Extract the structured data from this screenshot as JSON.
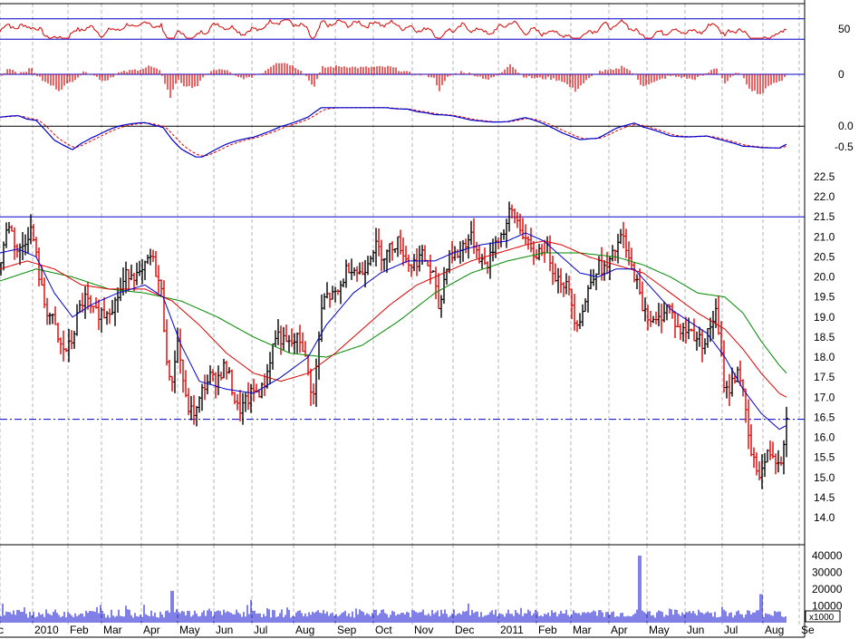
{
  "chart_data": {
    "type": "line",
    "panels": {
      "rsi": {
        "tick_labels": [
          "50"
        ],
        "ylim": [
          0,
          100
        ],
        "reference_lines": [
          30,
          70
        ],
        "color": "#dd0000"
      },
      "histogram": {
        "tick_labels": [
          "0"
        ],
        "color": "#dd0000"
      },
      "macd": {
        "tick_labels": [
          "0.0",
          "-0.5"
        ],
        "ylim": [
          -0.9,
          0.6
        ],
        "series_colors": {
          "macd": "#0000cc",
          "signal": "#dd0000"
        }
      },
      "price": {
        "tick_labels": [
          "22.5",
          "22.0",
          "21.5",
          "21.0",
          "20.5",
          "20.0",
          "19.5",
          "19.0",
          "18.5",
          "18.0",
          "17.5",
          "17.0",
          "16.5",
          "16.0",
          "15.5",
          "15.0",
          "14.5",
          "14.0"
        ],
        "ylim": [
          13.6,
          22.9
        ],
        "reference_lines": [
          {
            "value": 21.5,
            "style": "solid"
          },
          {
            "value": 16.45,
            "style": "dashdot"
          }
        ],
        "ma_colors": {
          "short": "#0000cc",
          "medium": "#dd0000",
          "long": "#008800"
        }
      },
      "volume": {
        "tick_labels": [
          "40000",
          "30000",
          "20000",
          "10000"
        ],
        "unit_label": "x1000",
        "ylim": [
          0,
          45000
        ],
        "color": "#0000cc"
      }
    },
    "x_axis_labels": [
      "c",
      "2010",
      "Feb",
      "Mar",
      "Apr",
      "May",
      "Jun",
      "Jul",
      "Aug",
      "Sep",
      "Oct",
      "Nov",
      "Dec",
      "2011",
      "Feb",
      "Mar",
      "Apr",
      "May",
      "Jun",
      "Jul",
      "Aug",
      "Se"
    ],
    "ohlc_anchors": [
      [
        0,
        20.3
      ],
      [
        10,
        21.2
      ],
      [
        20,
        20.8
      ],
      [
        35,
        21.0
      ],
      [
        50,
        19.4
      ],
      [
        65,
        18.2
      ],
      [
        80,
        18.5
      ],
      [
        95,
        19.5
      ],
      [
        115,
        18.9
      ],
      [
        130,
        19.7
      ],
      [
        145,
        20.0
      ],
      [
        165,
        20.4
      ],
      [
        178,
        19.7
      ],
      [
        188,
        17.2
      ],
      [
        196,
        18.2
      ],
      [
        205,
        17.0
      ],
      [
        218,
        16.6
      ],
      [
        232,
        17.6
      ],
      [
        248,
        17.6
      ],
      [
        262,
        16.9
      ],
      [
        275,
        16.8
      ],
      [
        290,
        17.4
      ],
      [
        305,
        18.4
      ],
      [
        318,
        18.5
      ],
      [
        333,
        18.2
      ],
      [
        346,
        17.2
      ],
      [
        356,
        19.2
      ],
      [
        370,
        19.7
      ],
      [
        385,
        20.1
      ],
      [
        400,
        20.3
      ],
      [
        415,
        20.6
      ],
      [
        430,
        20.8
      ],
      [
        445,
        20.6
      ],
      [
        460,
        20.4
      ],
      [
        478,
        20.2
      ],
      [
        485,
        19.2
      ],
      [
        495,
        20.4
      ],
      [
        510,
        20.9
      ],
      [
        525,
        20.7
      ],
      [
        540,
        20.4
      ],
      [
        553,
        21.0
      ],
      [
        563,
        21.8
      ],
      [
        575,
        21.0
      ],
      [
        590,
        20.7
      ],
      [
        605,
        20.5
      ],
      [
        620,
        20.0
      ],
      [
        635,
        18.9
      ],
      [
        648,
        19.6
      ],
      [
        663,
        20.3
      ],
      [
        678,
        20.5
      ],
      [
        688,
        20.9
      ],
      [
        700,
        20.2
      ],
      [
        708,
        19.1
      ],
      [
        722,
        19.0
      ],
      [
        738,
        19.1
      ],
      [
        752,
        18.8
      ],
      [
        765,
        18.4
      ],
      [
        778,
        18.6
      ],
      [
        790,
        18.9
      ],
      [
        800,
        17.3
      ],
      [
        815,
        17.6
      ],
      [
        828,
        15.8
      ],
      [
        840,
        15.0
      ],
      [
        852,
        15.7
      ],
      [
        862,
        15.6
      ],
      [
        868,
        16.3
      ]
    ],
    "ma_short_anchors": [
      [
        0,
        20.6
      ],
      [
        20,
        20.7
      ],
      [
        40,
        20.5
      ],
      [
        60,
        19.6
      ],
      [
        80,
        19.0
      ],
      [
        100,
        19.3
      ],
      [
        130,
        19.6
      ],
      [
        160,
        19.8
      ],
      [
        180,
        19.5
      ],
      [
        200,
        18.3
      ],
      [
        220,
        17.4
      ],
      [
        250,
        17.2
      ],
      [
        280,
        17.1
      ],
      [
        310,
        17.5
      ],
      [
        340,
        18.0
      ],
      [
        360,
        18.8
      ],
      [
        390,
        19.6
      ],
      [
        420,
        20.1
      ],
      [
        450,
        20.4
      ],
      [
        480,
        20.4
      ],
      [
        500,
        20.6
      ],
      [
        530,
        20.8
      ],
      [
        560,
        20.9
      ],
      [
        580,
        21.1
      ],
      [
        600,
        20.9
      ],
      [
        620,
        20.5
      ],
      [
        640,
        20.1
      ],
      [
        660,
        20.0
      ],
      [
        680,
        20.2
      ],
      [
        700,
        20.2
      ],
      [
        720,
        19.7
      ],
      [
        740,
        19.2
      ],
      [
        760,
        18.9
      ],
      [
        780,
        18.6
      ],
      [
        800,
        18.0
      ],
      [
        820,
        17.2
      ],
      [
        840,
        16.6
      ],
      [
        860,
        16.2
      ],
      [
        868,
        16.3
      ]
    ],
    "ma_medium_anchors": [
      [
        0,
        20.2
      ],
      [
        30,
        20.4
      ],
      [
        60,
        20.2
      ],
      [
        90,
        19.8
      ],
      [
        120,
        19.7
      ],
      [
        160,
        19.7
      ],
      [
        190,
        19.4
      ],
      [
        220,
        18.8
      ],
      [
        250,
        18.1
      ],
      [
        280,
        17.6
      ],
      [
        310,
        17.4
      ],
      [
        340,
        17.6
      ],
      [
        370,
        18.1
      ],
      [
        400,
        18.7
      ],
      [
        430,
        19.3
      ],
      [
        460,
        19.8
      ],
      [
        490,
        20.1
      ],
      [
        520,
        20.4
      ],
      [
        550,
        20.6
      ],
      [
        580,
        20.8
      ],
      [
        600,
        20.9
      ],
      [
        620,
        20.8
      ],
      [
        650,
        20.5
      ],
      [
        680,
        20.3
      ],
      [
        710,
        20.1
      ],
      [
        740,
        19.6
      ],
      [
        770,
        19.1
      ],
      [
        800,
        18.7
      ],
      [
        820,
        18.2
      ],
      [
        840,
        17.6
      ],
      [
        860,
        17.1
      ],
      [
        868,
        17.0
      ]
    ],
    "ma_long_anchors": [
      [
        0,
        19.9
      ],
      [
        40,
        20.2
      ],
      [
        80,
        20.0
      ],
      [
        120,
        19.7
      ],
      [
        160,
        19.6
      ],
      [
        200,
        19.4
      ],
      [
        240,
        19.0
      ],
      [
        280,
        18.5
      ],
      [
        320,
        18.1
      ],
      [
        360,
        18.0
      ],
      [
        400,
        18.3
      ],
      [
        440,
        18.9
      ],
      [
        480,
        19.6
      ],
      [
        520,
        20.1
      ],
      [
        560,
        20.4
      ],
      [
        600,
        20.6
      ],
      [
        640,
        20.6
      ],
      [
        680,
        20.5
      ],
      [
        710,
        20.3
      ],
      [
        740,
        20.0
      ],
      [
        770,
        19.6
      ],
      [
        800,
        19.5
      ],
      [
        820,
        19.1
      ],
      [
        840,
        18.4
      ],
      [
        860,
        17.8
      ],
      [
        868,
        17.6
      ]
    ],
    "volume_spikes": [
      [
        190,
        19000
      ],
      [
        706,
        40000
      ],
      [
        840,
        17000
      ]
    ]
  }
}
